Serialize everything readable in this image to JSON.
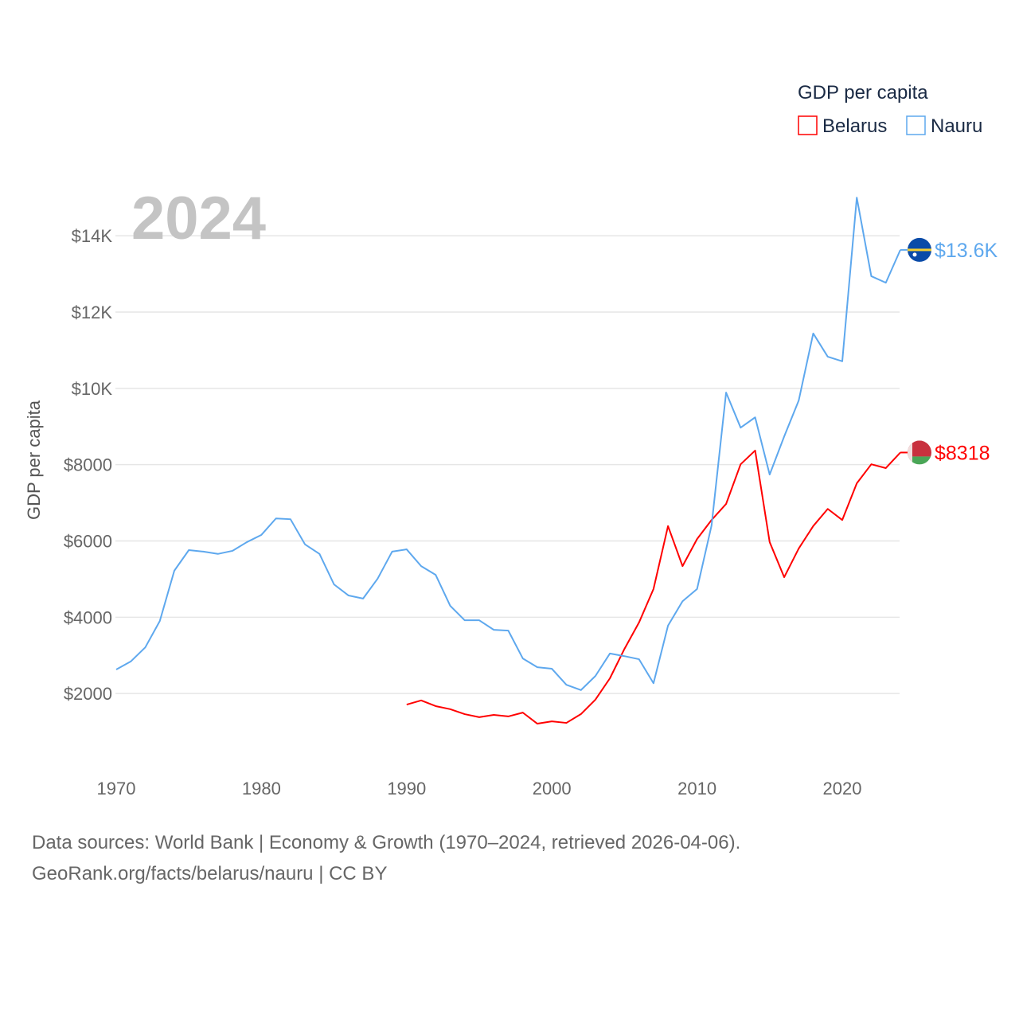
{
  "chart_data": {
    "type": "line",
    "title": "2024",
    "ylabel": "GDP per capita",
    "xlabel": "",
    "legend": {
      "title": "GDP per capita",
      "placement": "top-right"
    },
    "xlim": [
      1970,
      2024
    ],
    "ylim": [
      0,
      15200
    ],
    "x_ticks": [
      "1970",
      "1980",
      "1990",
      "2000",
      "2010",
      "2020"
    ],
    "y_ticks": [
      {
        "value": 2000,
        "label": "$2000"
      },
      {
        "value": 4000,
        "label": "$4000"
      },
      {
        "value": 6000,
        "label": "$6000"
      },
      {
        "value": 8000,
        "label": "$8000"
      },
      {
        "value": 10000,
        "label": "$10K"
      },
      {
        "value": 12000,
        "label": "$12K"
      },
      {
        "value": 14000,
        "label": "$14K"
      }
    ],
    "grid": true,
    "series": [
      {
        "name": "Belarus",
        "color": "#ff0000",
        "end_label": "$8318",
        "flag": "belarus-flag",
        "start_year": 1990,
        "values": [
          1710,
          1820,
          1670,
          1590,
          1460,
          1380,
          1440,
          1400,
          1500,
          1210,
          1270,
          1230,
          1460,
          1840,
          2400,
          3170,
          3860,
          4740,
          6390,
          5340,
          6050,
          6550,
          6970,
          8010,
          8370,
          5970,
          5050,
          5800,
          6390,
          6840,
          6550,
          7510,
          8010,
          7910,
          8318
        ]
      },
      {
        "name": "Nauru",
        "color": "#5ea8ee",
        "end_label": "$13.6K",
        "flag": "nauru-flag",
        "start_year": 1970,
        "values": [
          2630,
          2840,
          3210,
          3900,
          5220,
          5760,
          5720,
          5660,
          5740,
          5970,
          6160,
          6590,
          6570,
          5910,
          5660,
          4860,
          4570,
          4490,
          5010,
          5720,
          5780,
          5340,
          5110,
          4300,
          3920,
          3920,
          3670,
          3650,
          2920,
          2690,
          2650,
          2230,
          2090,
          2460,
          3050,
          2980,
          2900,
          2270,
          3780,
          4420,
          4740,
          6410,
          9890,
          8970,
          9240,
          7740,
          8740,
          9680,
          11440,
          10830,
          10710,
          15000,
          12940,
          12770,
          13630
        ]
      }
    ]
  },
  "footer": {
    "line1": "Data sources: World Bank | Economy & Growth (1970–2024, retrieved 2026-04-06).",
    "line2": "GeoRank.org/facts/belarus/nauru | CC BY"
  }
}
